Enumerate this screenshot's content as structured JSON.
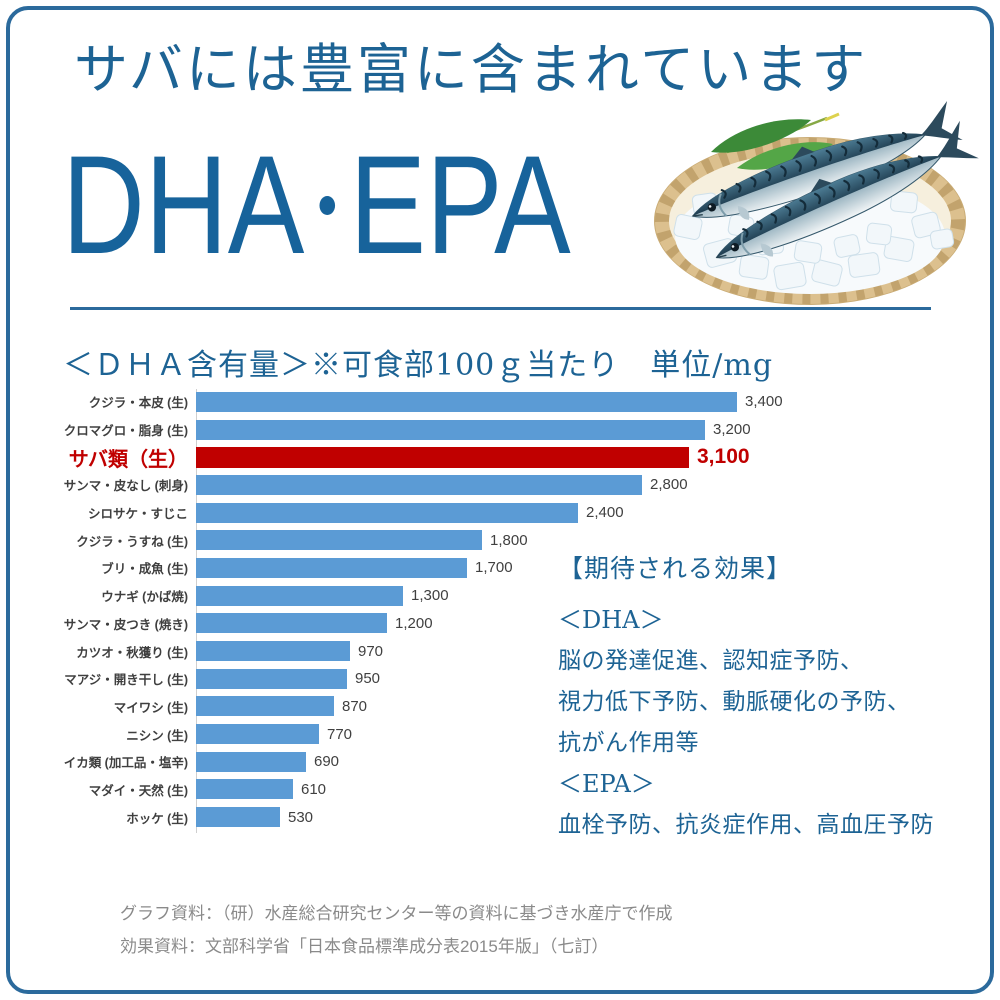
{
  "colors": {
    "border_blue": "#2b6a9c",
    "accent_blue": "#1d6394",
    "headline_blue": "#17639b",
    "bar_blue": "#5b9bd5",
    "highlight_red": "#c00000",
    "label_gray": "#3f3f3f",
    "value_gray": "#404040",
    "footer_gray": "#8a8a8a"
  },
  "header": {
    "title": "サバには豊富に含まれています",
    "headline_left": "DHA",
    "separator": "・",
    "headline_right": "EPA"
  },
  "chart_data": {
    "type": "bar",
    "orientation": "horizontal",
    "title": "＜ＤＨＡ含有量＞※可食部100ｇ当たり　単位/mg",
    "unit": "mg",
    "xlim": [
      0,
      3400
    ],
    "grid": false,
    "legend": false,
    "categories": [
      "クジラ・本皮 (生)",
      "クロマグロ・脂身 (生)",
      "サバ類（生）",
      "サンマ・皮なし (刺身)",
      "シロサケ・すじこ",
      "クジラ・うすね (生)",
      "ブリ・成魚 (生)",
      "ウナギ (かば焼)",
      "サンマ・皮つき (焼き)",
      "カツオ・秋獲り (生)",
      "マアジ・開き干し (生)",
      "マイワシ (生)",
      "ニシン (生)",
      "イカ類 (加工品・塩辛)",
      "マダイ・天然 (生)",
      "ホッケ (生)"
    ],
    "values": [
      3400,
      3200,
      3100,
      2800,
      2400,
      1800,
      1700,
      1300,
      1200,
      970,
      950,
      870,
      770,
      690,
      610,
      530
    ],
    "value_labels": [
      "3,400",
      "3,200",
      "3,100",
      "2,800",
      "2,400",
      "1,800",
      "1,700",
      "1,300",
      "1,200",
      "970",
      "950",
      "870",
      "770",
      "690",
      "610",
      "530"
    ],
    "highlight_index": 2,
    "highlight_category": "サバ類（生）"
  },
  "effects": {
    "heading": "【期待される効果】",
    "dha_label": "＜DHA＞",
    "dha_lines": [
      "脳の発達促進、認知症予防、",
      "視力低下予防、動脈硬化の予防、",
      "抗がん作用等"
    ],
    "epa_label": "＜EPA＞",
    "epa_lines": [
      "血栓予防、抗炎症作用、高血圧予防"
    ]
  },
  "footer": {
    "source_chart": "グラフ資料：（研）水産総合研究センター等の資料に基づき水産庁で作成",
    "source_effects": "効果資料：文部科学省「日本食品標準成分表2015年版」（七訂）"
  }
}
